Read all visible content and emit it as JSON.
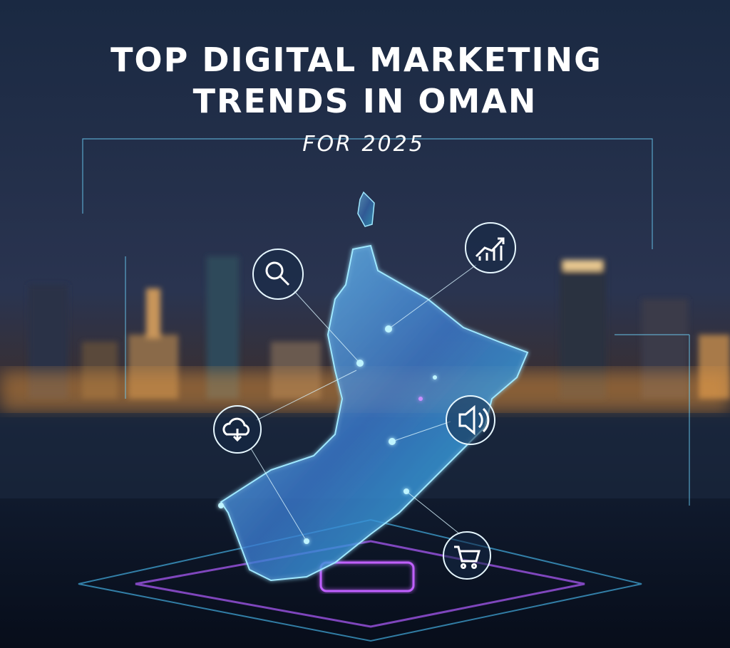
{
  "header": {
    "title_lines": [
      "TOP DIGITAL MARKETING",
      "TRENDS IN OMAN"
    ],
    "subtitle": "FOR 2025"
  }
}
